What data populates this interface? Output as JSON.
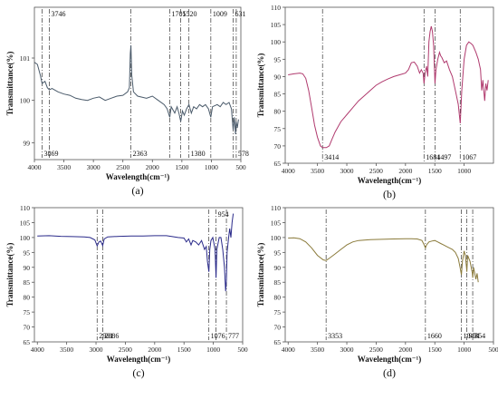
{
  "figure": {
    "panels": [
      "a",
      "b",
      "c",
      "d"
    ]
  },
  "chart_data": [
    {
      "type": "line",
      "panel_label": "(a)",
      "xlabel": "Wavelength(cm⁻¹)",
      "ylabel": "Transmittance(%)",
      "xlim": [
        4000,
        500
      ],
      "ylim": [
        98.6,
        102.2
      ],
      "x_ticks": [
        4000,
        3500,
        3000,
        2500,
        2000,
        1500,
        1000,
        500
      ],
      "y_ticks": [
        99,
        100,
        101
      ],
      "line_color": "#4a5a6a",
      "annotations": [
        {
          "x": 3869,
          "label": "3869",
          "pos": "bottom"
        },
        {
          "x": 3746,
          "label": "3746",
          "pos": "top"
        },
        {
          "x": 2363,
          "label": "2363",
          "pos": "bottom"
        },
        {
          "x": 1705,
          "label": "1705",
          "pos": "top"
        },
        {
          "x": 1520,
          "label": "1520",
          "pos": "top"
        },
        {
          "x": 1380,
          "label": "1380",
          "pos": "bottom"
        },
        {
          "x": 1009,
          "label": "1009",
          "pos": "top"
        },
        {
          "x": 631,
          "label": "631",
          "pos": "top"
        },
        {
          "x": 578,
          "label": "578",
          "pos": "bottom"
        }
      ],
      "points": [
        [
          4000,
          100.9
        ],
        [
          3950,
          100.85
        ],
        [
          3900,
          100.6
        ],
        [
          3869,
          100.4
        ],
        [
          3820,
          100.45
        ],
        [
          3780,
          100.3
        ],
        [
          3746,
          100.25
        ],
        [
          3700,
          100.28
        ],
        [
          3600,
          100.2
        ],
        [
          3500,
          100.15
        ],
        [
          3400,
          100.12
        ],
        [
          3300,
          100.05
        ],
        [
          3200,
          100.02
        ],
        [
          3100,
          100.0
        ],
        [
          3000,
          100.05
        ],
        [
          2900,
          100.08
        ],
        [
          2800,
          100.0
        ],
        [
          2700,
          100.05
        ],
        [
          2600,
          100.1
        ],
        [
          2500,
          100.12
        ],
        [
          2420,
          100.2
        ],
        [
          2390,
          100.3
        ],
        [
          2375,
          101.1
        ],
        [
          2363,
          101.3
        ],
        [
          2350,
          100.6
        ],
        [
          2320,
          100.2
        ],
        [
          2250,
          100.1
        ],
        [
          2100,
          100.05
        ],
        [
          2000,
          100.1
        ],
        [
          1900,
          100.0
        ],
        [
          1800,
          99.9
        ],
        [
          1750,
          99.8
        ],
        [
          1705,
          99.6
        ],
        [
          1680,
          99.85
        ],
        [
          1620,
          99.7
        ],
        [
          1580,
          99.85
        ],
        [
          1550,
          99.7
        ],
        [
          1520,
          99.5
        ],
        [
          1490,
          99.75
        ],
        [
          1460,
          99.65
        ],
        [
          1420,
          99.8
        ],
        [
          1380,
          99.9
        ],
        [
          1340,
          99.7
        ],
        [
          1300,
          99.85
        ],
        [
          1250,
          99.8
        ],
        [
          1200,
          99.9
        ],
        [
          1150,
          99.85
        ],
        [
          1100,
          99.9
        ],
        [
          1050,
          99.8
        ],
        [
          1009,
          99.6
        ],
        [
          980,
          99.85
        ],
        [
          900,
          99.9
        ],
        [
          850,
          99.85
        ],
        [
          800,
          99.95
        ],
        [
          750,
          99.9
        ],
        [
          700,
          99.95
        ],
        [
          660,
          99.8
        ],
        [
          631,
          99.3
        ],
        [
          610,
          99.6
        ],
        [
          590,
          99.2
        ],
        [
          578,
          99.5
        ],
        [
          560,
          99.35
        ],
        [
          540,
          99.55
        ]
      ]
    },
    {
      "type": "line",
      "panel_label": "(b)",
      "xlabel": "Wavelength(cm⁻¹)",
      "ylabel": "Transmittance(%)",
      "xlim": [
        4050,
        500
      ],
      "ylim": [
        65,
        110
      ],
      "x_ticks": [
        4000,
        3500,
        3000,
        2500,
        2000,
        1500,
        1000
      ],
      "y_ticks": [
        65,
        70,
        75,
        80,
        85,
        90,
        95,
        100,
        105,
        110
      ],
      "line_color": "#b03a6e",
      "annotations": [
        {
          "x": 3414,
          "label": "3414",
          "pos": "bottom"
        },
        {
          "x": 1684,
          "label": "1684",
          "pos": "bottom"
        },
        {
          "x": 1497,
          "label": "1497",
          "pos": "bottom"
        },
        {
          "x": 1067,
          "label": "1067",
          "pos": "bottom"
        }
      ],
      "points": [
        [
          4000,
          90.5
        ],
        [
          3900,
          90.8
        ],
        [
          3800,
          91.0
        ],
        [
          3750,
          90.8
        ],
        [
          3700,
          89.5
        ],
        [
          3650,
          86
        ],
        [
          3600,
          81
        ],
        [
          3550,
          76
        ],
        [
          3500,
          72.5
        ],
        [
          3450,
          70
        ],
        [
          3414,
          69.5
        ],
        [
          3350,
          69.5
        ],
        [
          3300,
          70
        ],
        [
          3250,
          72
        ],
        [
          3200,
          74
        ],
        [
          3100,
          77
        ],
        [
          3000,
          79
        ],
        [
          2900,
          81
        ],
        [
          2800,
          83
        ],
        [
          2700,
          84.5
        ],
        [
          2600,
          86
        ],
        [
          2500,
          87.5
        ],
        [
          2400,
          88.5
        ],
        [
          2300,
          89.3
        ],
        [
          2200,
          90
        ],
        [
          2100,
          90.5
        ],
        [
          2000,
          91
        ],
        [
          1950,
          92
        ],
        [
          1900,
          94
        ],
        [
          1850,
          94.2
        ],
        [
          1800,
          93
        ],
        [
          1760,
          91
        ],
        [
          1730,
          92
        ],
        [
          1700,
          91
        ],
        [
          1684,
          88
        ],
        [
          1665,
          91
        ],
        [
          1640,
          93
        ],
        [
          1620,
          90
        ],
        [
          1600,
          100
        ],
        [
          1580,
          103
        ],
        [
          1560,
          104.5
        ],
        [
          1540,
          103
        ],
        [
          1520,
          99
        ],
        [
          1497,
          88
        ],
        [
          1480,
          92
        ],
        [
          1450,
          95
        ],
        [
          1420,
          97
        ],
        [
          1400,
          96
        ],
        [
          1380,
          95.5
        ],
        [
          1340,
          94
        ],
        [
          1300,
          94.5
        ],
        [
          1250,
          92
        ],
        [
          1200,
          90
        ],
        [
          1150,
          86
        ],
        [
          1100,
          82
        ],
        [
          1067,
          76.5
        ],
        [
          1040,
          86
        ],
        [
          1000,
          95
        ],
        [
          960,
          99
        ],
        [
          920,
          100
        ],
        [
          880,
          99.5
        ],
        [
          850,
          99
        ],
        [
          800,
          97
        ],
        [
          760,
          95
        ],
        [
          720,
          92
        ],
        [
          700,
          86
        ],
        [
          680,
          89
        ],
        [
          650,
          83
        ],
        [
          630,
          88
        ],
        [
          610,
          86
        ],
        [
          590,
          89
        ]
      ]
    },
    {
      "type": "line",
      "panel_label": "(c)",
      "xlabel": "Wavelength(cm⁻¹)",
      "ylabel": "Transmittance(%)",
      "xlim": [
        4050,
        500
      ],
      "ylim": [
        65,
        110
      ],
      "x_ticks": [
        4000,
        3500,
        3000,
        2500,
        2000,
        1500,
        1000,
        500
      ],
      "y_ticks": [
        65,
        70,
        75,
        80,
        85,
        90,
        95,
        100,
        105,
        110
      ],
      "line_color": "#2a2a8a",
      "annotations": [
        {
          "x": 2981,
          "label": "2981",
          "pos": "bottom"
        },
        {
          "x": 2886,
          "label": "2886",
          "pos": "bottom"
        },
        {
          "x": 1076,
          "label": "1076",
          "pos": "bottom"
        },
        {
          "x": 954,
          "label": "954",
          "pos": "top"
        },
        {
          "x": 777,
          "label": "777",
          "pos": "bottom"
        }
      ],
      "points": [
        [
          4000,
          100.5
        ],
        [
          3800,
          100.6
        ],
        [
          3600,
          100.4
        ],
        [
          3400,
          100.3
        ],
        [
          3200,
          100.2
        ],
        [
          3100,
          100.0
        ],
        [
          3020,
          99.2
        ],
        [
          2981,
          97.2
        ],
        [
          2950,
          98.5
        ],
        [
          2920,
          98.8
        ],
        [
          2886,
          97.3
        ],
        [
          2860,
          99.5
        ],
        [
          2800,
          100.2
        ],
        [
          2600,
          100.4
        ],
        [
          2400,
          100.5
        ],
        [
          2200,
          100.5
        ],
        [
          2000,
          100.6
        ],
        [
          1800,
          100.6
        ],
        [
          1700,
          100.3
        ],
        [
          1600,
          100.0
        ],
        [
          1500,
          99.8
        ],
        [
          1460,
          98.5
        ],
        [
          1420,
          99.5
        ],
        [
          1380,
          97.5
        ],
        [
          1350,
          99
        ],
        [
          1300,
          98.5
        ],
        [
          1250,
          97.5
        ],
        [
          1200,
          99
        ],
        [
          1150,
          96
        ],
        [
          1120,
          97
        ],
        [
          1100,
          92
        ],
        [
          1076,
          88.5
        ],
        [
          1060,
          96
        ],
        [
          1040,
          99
        ],
        [
          1010,
          100
        ],
        [
          990,
          98
        ],
        [
          970,
          96
        ],
        [
          954,
          86.5
        ],
        [
          940,
          96
        ],
        [
          900,
          100
        ],
        [
          870,
          100
        ],
        [
          840,
          96
        ],
        [
          810,
          90
        ],
        [
          790,
          82
        ],
        [
          777,
          86
        ],
        [
          765,
          95
        ],
        [
          740,
          100
        ],
        [
          720,
          103
        ],
        [
          700,
          100
        ],
        [
          680,
          105
        ],
        [
          660,
          108
        ]
      ]
    },
    {
      "type": "line",
      "panel_label": "(d)",
      "xlabel": "Wavelength(cm⁻¹)",
      "ylabel": "Transmittance(%)",
      "xlim": [
        4050,
        500
      ],
      "ylim": [
        65,
        110
      ],
      "x_ticks": [
        4000,
        3500,
        3000,
        2500,
        2000,
        1500,
        1000,
        500
      ],
      "y_ticks": [
        65,
        70,
        75,
        80,
        85,
        90,
        95,
        100,
        105,
        110
      ],
      "line_color": "#8a7a3a",
      "annotations": [
        {
          "x": 3353,
          "label": "3353",
          "pos": "bottom"
        },
        {
          "x": 1660,
          "label": "1660",
          "pos": "bottom"
        },
        {
          "x": 1047,
          "label": "1047",
          "pos": "bottom"
        },
        {
          "x": 954,
          "label": "954",
          "pos": "bottom"
        },
        {
          "x": 854,
          "label": "854",
          "pos": "bottom"
        }
      ],
      "points": [
        [
          4000,
          99.8
        ],
        [
          3900,
          99.9
        ],
        [
          3800,
          99.6
        ],
        [
          3700,
          98.5
        ],
        [
          3600,
          96.5
        ],
        [
          3500,
          94
        ],
        [
          3400,
          92.5
        ],
        [
          3353,
          92.3
        ],
        [
          3300,
          93
        ],
        [
          3200,
          94.5
        ],
        [
          3100,
          96
        ],
        [
          3000,
          97.5
        ],
        [
          2900,
          98.5
        ],
        [
          2800,
          99.0
        ],
        [
          2600,
          99.3
        ],
        [
          2400,
          99.4
        ],
        [
          2200,
          99.5
        ],
        [
          2000,
          99.6
        ],
        [
          1900,
          99.6
        ],
        [
          1800,
          99.5
        ],
        [
          1720,
          99
        ],
        [
          1680,
          97.5
        ],
        [
          1660,
          96.5
        ],
        [
          1640,
          97.5
        ],
        [
          1600,
          98.5
        ],
        [
          1550,
          98.8
        ],
        [
          1500,
          99
        ],
        [
          1450,
          98.5
        ],
        [
          1400,
          98
        ],
        [
          1350,
          97.5
        ],
        [
          1300,
          97
        ],
        [
          1250,
          96.5
        ],
        [
          1200,
          96
        ],
        [
          1150,
          95
        ],
        [
          1100,
          93
        ],
        [
          1070,
          90
        ],
        [
          1047,
          87.5
        ],
        [
          1030,
          92
        ],
        [
          1000,
          95.5
        ],
        [
          980,
          94
        ],
        [
          960,
          90
        ],
        [
          954,
          88.5
        ],
        [
          940,
          94
        ],
        [
          920,
          93
        ],
        [
          900,
          92
        ],
        [
          880,
          90
        ],
        [
          860,
          88
        ],
        [
          854,
          86.5
        ],
        [
          840,
          90
        ],
        [
          820,
          88
        ],
        [
          800,
          86
        ],
        [
          780,
          88
        ],
        [
          760,
          85
        ]
      ]
    }
  ]
}
